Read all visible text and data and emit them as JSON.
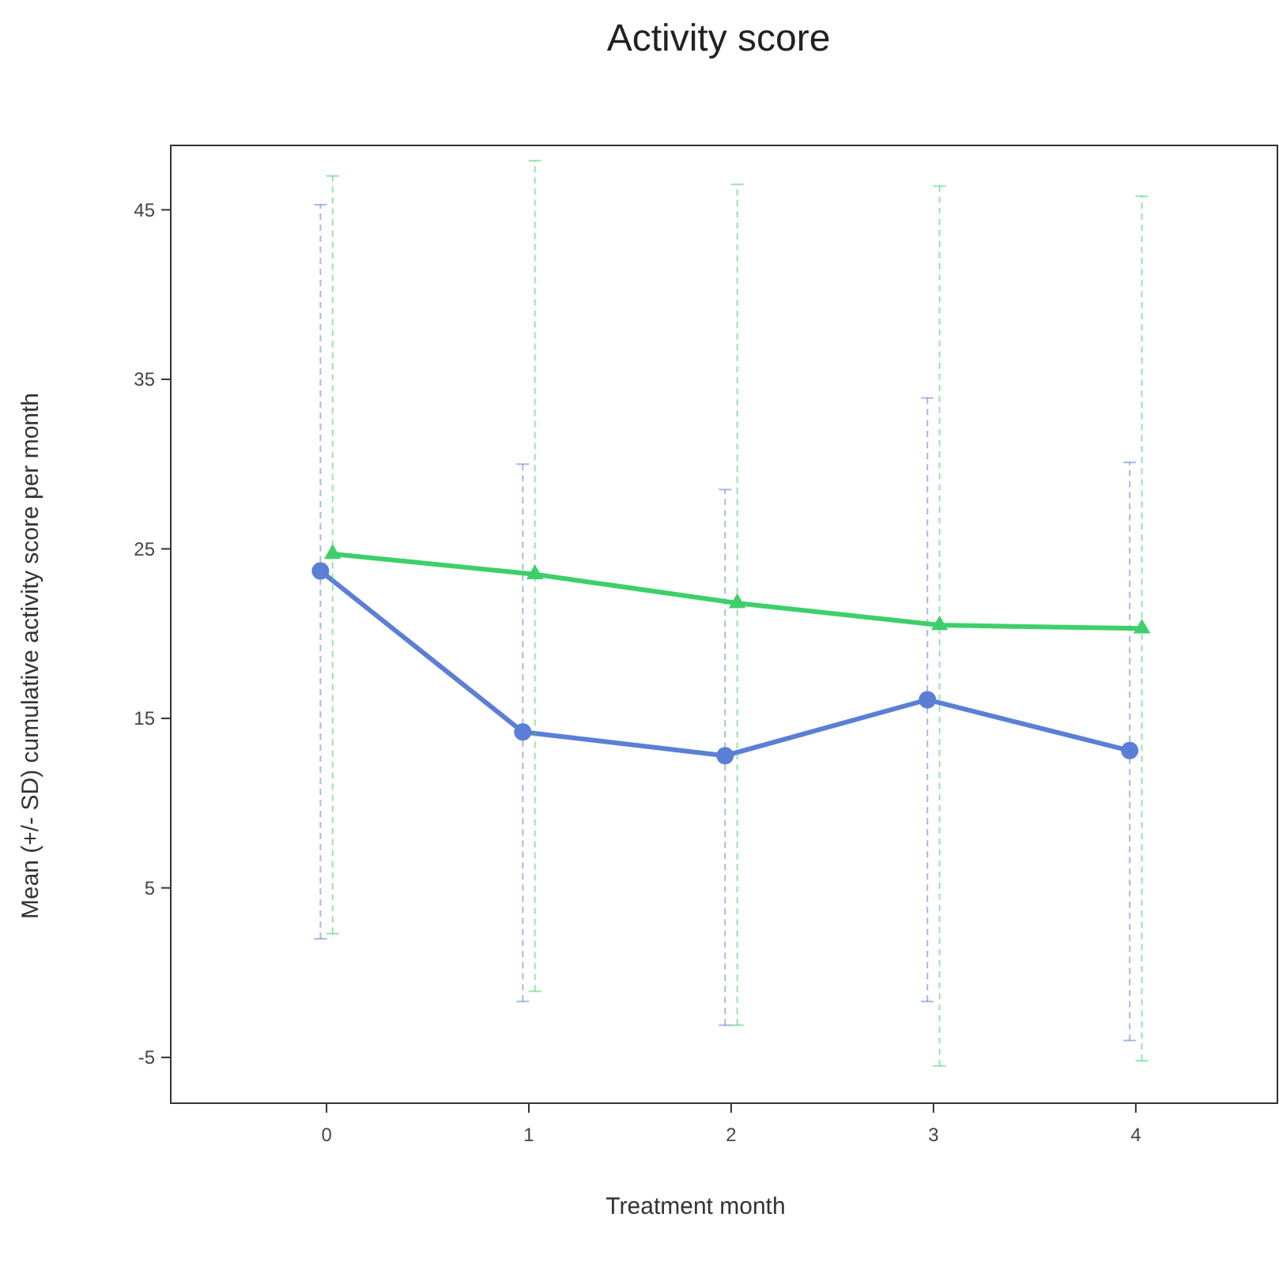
{
  "chart_data": {
    "type": "line",
    "title": "Activity score",
    "xlabel": "Treatment month",
    "ylabel": "Mean (+/- SD) cumulative activity score per month",
    "xlim": [
      -0.77,
      4.7
    ],
    "xticks": [
      0,
      1,
      2,
      3,
      4
    ],
    "ylim": [
      -7.7,
      48.8
    ],
    "yticks": [
      -5,
      5,
      15,
      25,
      35,
      45
    ],
    "line_style": "solid",
    "series": [
      {
        "color": "#5b7fd6",
        "marker": "circle",
        "x": [
          -0.03,
          0.97,
          1.97,
          2.97,
          3.97
        ],
        "values": [
          23.7,
          14.2,
          12.8,
          16.1,
          13.1
        ],
        "errors": [
          [
            2.0,
            45.3
          ],
          [
            -1.7,
            30.0
          ],
          [
            -3.1,
            28.5
          ],
          [
            -1.7,
            33.9
          ],
          [
            -4.0,
            30.1
          ]
        ]
      },
      {
        "color": "#3ecf6a",
        "marker": "triangle",
        "x": [
          0.03,
          1.03,
          2.03,
          3.03,
          4.03
        ],
        "values": [
          24.7,
          23.5,
          21.8,
          20.5,
          20.3
        ],
        "errors": [
          [
            2.3,
            47.0
          ],
          [
            -1.1,
            47.9
          ],
          [
            -3.1,
            46.5
          ],
          [
            -5.5,
            46.4
          ],
          [
            -5.2,
            45.8
          ]
        ]
      }
    ]
  }
}
